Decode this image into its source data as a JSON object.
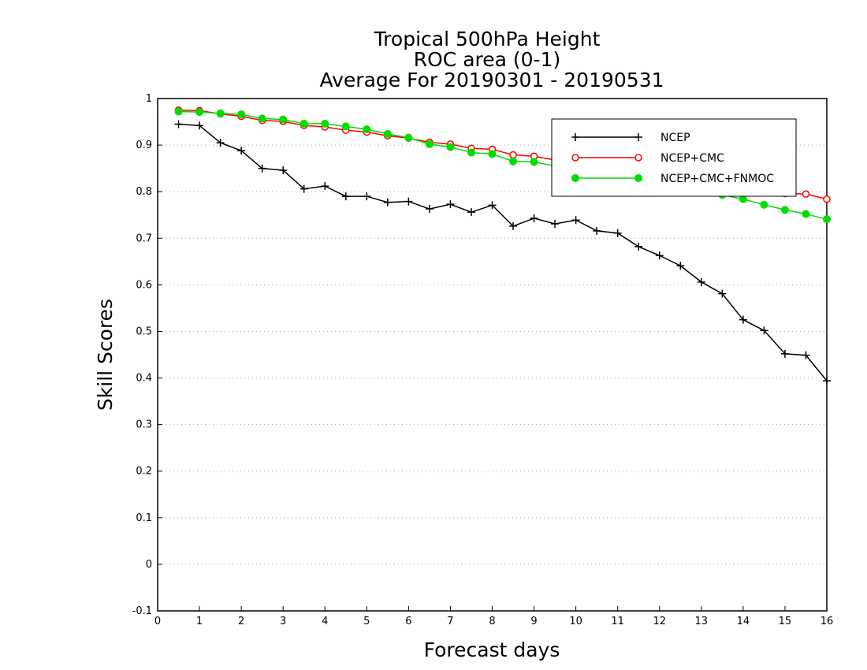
{
  "chart_data": {
    "type": "line",
    "title_lines": [
      "Tropical 500hPa Height",
      "ROC area (0-1)",
      "Average For 20190301 - 20190531"
    ],
    "xlabel": "Forecast days",
    "ylabel": "Skill Scores",
    "xlim": [
      0,
      16
    ],
    "ylim": [
      -0.1,
      1
    ],
    "xticks": [
      0,
      1,
      2,
      3,
      4,
      5,
      6,
      7,
      8,
      9,
      10,
      11,
      12,
      13,
      14,
      15,
      16
    ],
    "yticks": [
      -0.1,
      0,
      0.1,
      0.2,
      0.3,
      0.4,
      0.5,
      0.6,
      0.7,
      0.8,
      0.9,
      1
    ],
    "ytick_labels": [
      "-0.1",
      "0",
      "0.1",
      "0.2",
      "0.3",
      "0.4",
      "0.5",
      "0.6",
      "0.7",
      "0.8",
      "0.9",
      "1"
    ],
    "grid": "horizontal dotted",
    "legend_position": "top-right",
    "x": [
      0.5,
      1,
      1.5,
      2,
      2.5,
      3,
      3.5,
      4,
      4.5,
      5,
      5.5,
      6,
      6.5,
      7,
      7.5,
      8,
      8.5,
      9,
      9.5,
      10,
      10.5,
      11,
      11.5,
      12,
      12.5,
      13,
      13.5,
      14,
      14.5,
      15,
      15.5,
      16
    ],
    "series": [
      {
        "name": "NCEP",
        "color": "#000000",
        "marker": "plus",
        "values": [
          0.945,
          0.942,
          0.905,
          0.888,
          0.85,
          0.846,
          0.806,
          0.812,
          0.79,
          0.79,
          0.777,
          0.779,
          0.763,
          0.773,
          0.756,
          0.771,
          0.726,
          0.743,
          0.731,
          0.739,
          0.716,
          0.711,
          0.682,
          0.663,
          0.641,
          0.606,
          0.581,
          0.525,
          0.502,
          0.452,
          0.449,
          0.394
        ]
      },
      {
        "name": "NCEP+CMC",
        "color": "#ff0000",
        "marker": "open-circle",
        "values": [
          0.975,
          0.974,
          0.967,
          0.962,
          0.953,
          0.951,
          0.942,
          0.939,
          0.932,
          0.928,
          0.92,
          0.915,
          0.906,
          0.902,
          0.893,
          0.891,
          0.879,
          0.876,
          0.868,
          0.862,
          0.852,
          0.845,
          0.838,
          0.83,
          0.824,
          0.816,
          0.809,
          0.803,
          0.798,
          0.796,
          0.795,
          0.784
        ]
      },
      {
        "name": "NCEP+CMC+FNMOC",
        "color": "#00dd00",
        "marker": "filled-circle",
        "values": [
          0.972,
          0.971,
          0.968,
          0.966,
          0.957,
          0.955,
          0.946,
          0.946,
          0.94,
          0.934,
          0.924,
          0.916,
          0.902,
          0.896,
          0.884,
          0.881,
          0.865,
          0.864,
          0.855,
          0.852,
          0.84,
          0.832,
          0.823,
          0.816,
          0.81,
          0.801,
          0.793,
          0.784,
          0.772,
          0.761,
          0.752,
          0.741
        ]
      }
    ]
  }
}
